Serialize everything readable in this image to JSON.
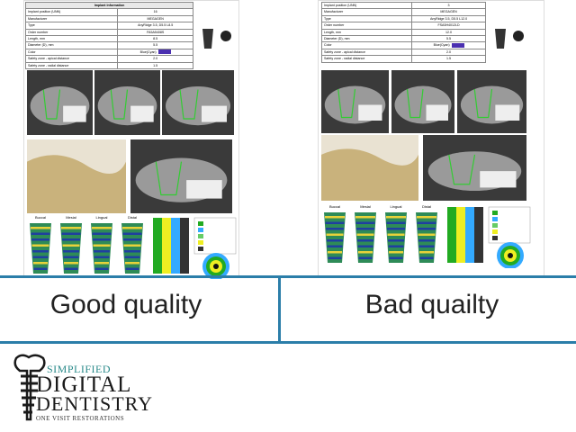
{
  "left_report": {
    "title": "Implant Information",
    "rows": [
      [
        "Implant position (UNN)",
        "16"
      ],
      [
        "Manufacturer",
        "MEGAGEN"
      ],
      [
        "Type",
        "AnyRidge 3.5, D5.5 L8.5"
      ],
      [
        "Order number",
        "FA5A5408S"
      ],
      [
        "Length, mm",
        "8.5"
      ],
      [
        "Diameter (D), mm",
        "5.5"
      ],
      [
        "Color",
        "Blue(Cyan)"
      ],
      [
        "Safety zone - apical distance",
        "2.0"
      ],
      [
        "Safety zone - radial distance",
        "1.5"
      ]
    ],
    "views": [
      "Buccal",
      "Mesial",
      "Lingual",
      "Distal"
    ]
  },
  "right_report": {
    "rows": [
      [
        "Implant position (UNN)",
        "3"
      ],
      [
        "Manufacturer",
        "MEGAGEN"
      ],
      [
        "Type",
        "AnyRidge 3.5, D5.5 L12.0"
      ],
      [
        "Order number",
        "FSA5H4012LD"
      ],
      [
        "Length, mm",
        "12.0"
      ],
      [
        "Diameter (D), mm",
        "5.5"
      ],
      [
        "Color",
        "Blue(Cyan)"
      ],
      [
        "Safety zone - apical distance",
        "2.0"
      ],
      [
        "Safety zone - radial distance",
        "1.5"
      ]
    ],
    "views": [
      "Buccal",
      "Mesial",
      "Lingual",
      "Distal"
    ]
  },
  "captions": {
    "left": "Good quality",
    "right": "Bad quailty"
  },
  "logo": {
    "line1": "SIMPLIFIED",
    "line2": "DIGITAL",
    "line3": "DENTISTRY",
    "tagline": "ONE VISIT RESTORATIONS"
  }
}
